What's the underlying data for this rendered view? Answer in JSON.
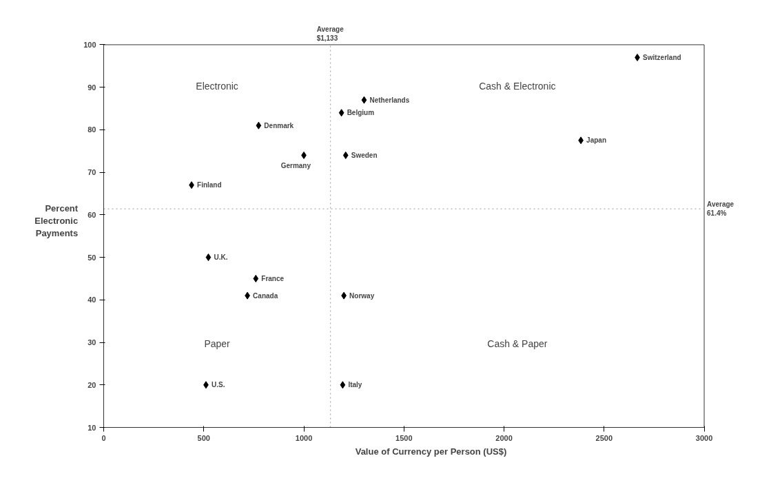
{
  "chart_data": {
    "type": "scatter",
    "xlabel": "Value of Currency per Person (US$)",
    "ylabel": "Percent\nElectronic\nPayments",
    "x": [
      439,
      774,
      1000,
      1188,
      1301,
      1209,
      523,
      760,
      718,
      1200,
      511,
      1194,
      2666,
      2384
    ],
    "values": [
      67,
      81,
      74,
      84,
      87,
      74,
      50,
      45,
      41,
      41,
      20,
      20,
      97,
      77.5
    ],
    "color": "#000000",
    "marker": "diamond",
    "grid": false,
    "xlim": [
      0,
      3000
    ],
    "xticks": [
      0,
      500,
      1000,
      1500,
      2000,
      2500,
      3000
    ],
    "ylim": [
      10,
      100
    ],
    "yticks": [
      10,
      20,
      30,
      40,
      50,
      60,
      70,
      80,
      90,
      100
    ],
    "ref_lines": [
      {
        "axis": "x",
        "value": 1133,
        "label": "Average\n$1,133",
        "color": "#9a9a9a",
        "line_style": "dotted"
      },
      {
        "axis": "y",
        "value": 61.4,
        "label": "Average\n61.4%",
        "color": "#9a9a9a",
        "line_style": "dotted"
      }
    ],
    "annotations": [
      "Electronic",
      "Cash & Electronic",
      "Paper",
      "Cash & Paper",
      {
        "text": "Finland",
        "x": 439,
        "y": 67
      },
      {
        "text": "Denmark",
        "x": 774,
        "y": 81
      },
      {
        "text": "Germany",
        "x": 1000,
        "y": 74
      },
      {
        "text": "Belgium",
        "x": 1188,
        "y": 84
      },
      {
        "text": "Netherlands",
        "x": 1301,
        "y": 87
      },
      {
        "text": "Sweden",
        "x": 1209,
        "y": 74
      },
      {
        "text": "U.K.",
        "x": 523,
        "y": 50
      },
      {
        "text": "France",
        "x": 760,
        "y": 45
      },
      {
        "text": "Canada",
        "x": 718,
        "y": 41
      },
      {
        "text": "Norway",
        "x": 1200,
        "y": 41
      },
      {
        "text": "U.S.",
        "x": 511,
        "y": 20
      },
      {
        "text": "Italy",
        "x": 1194,
        "y": 20
      },
      {
        "text": "Switzerland",
        "x": 2666,
        "y": 97
      },
      {
        "text": "Japan",
        "x": 2384,
        "y": 77.5
      }
    ]
  }
}
